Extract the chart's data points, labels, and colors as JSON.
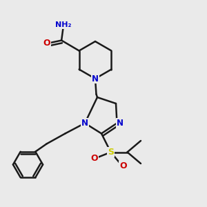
{
  "background_color": "#eaeaea",
  "atom_colors": {
    "C": "#1a1a1a",
    "N": "#0000cc",
    "O": "#cc0000",
    "S": "#cccc00",
    "H": "#4a8a8a"
  },
  "bond_color": "#1a1a1a",
  "bond_width": 1.8,
  "figsize": [
    3.0,
    3.0
  ],
  "dpi": 100
}
